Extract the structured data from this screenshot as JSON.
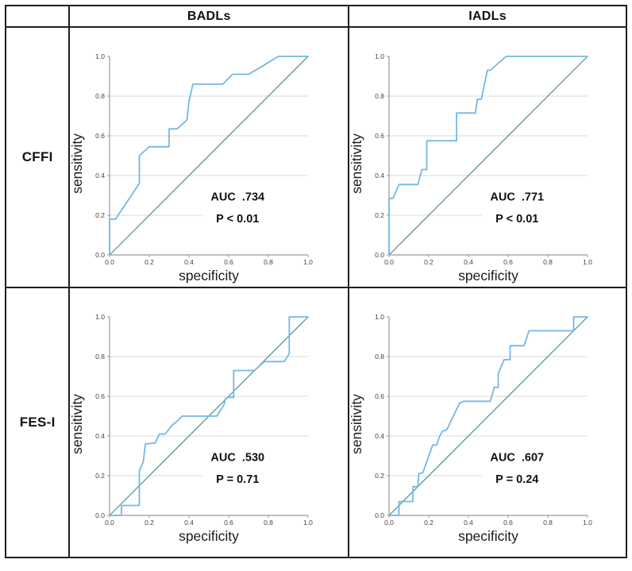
{
  "table": {
    "col_headers": [
      "BADLs",
      "IADLs"
    ],
    "row_headers": [
      "CFFI",
      "FES-I"
    ]
  },
  "axes": {
    "xlabel": "specificity",
    "ylabel": "sensitivity",
    "xlim": [
      0.0,
      1.0
    ],
    "ylim": [
      0.0,
      1.0
    ],
    "tick_values": [
      0.0,
      0.2,
      0.4,
      0.6,
      0.8,
      1.0
    ],
    "tick_labels": [
      "0.0",
      "0.2",
      "0.4",
      "0.6",
      "0.8",
      "1.0"
    ],
    "gridlines": "horizontal-only at 0.2 0.4 0.6 0.8",
    "legend": "none"
  },
  "colors": {
    "roc_curve": "#74b7e6",
    "reference_line": "#46918c",
    "gridline": "#d8d8d8",
    "axis_line": "#999999",
    "tick_text": "#444444",
    "table_border": "#1f1f1f",
    "text": "#111111"
  },
  "chart_data": [
    {
      "type": "line",
      "row": "CFFI",
      "column": "BADLs",
      "title": "ROC curve CFFI vs BADLs",
      "auc": 0.734,
      "auc_label": "AUC  .734",
      "p_label": "P < 0.01",
      "xlabel": "specificity",
      "ylabel": "sensitivity",
      "xlim": [
        0,
        1
      ],
      "ylim": [
        0,
        1
      ],
      "roc_points": [
        [
          0,
          0
        ],
        [
          0,
          0.18
        ],
        [
          0.03,
          0.18
        ],
        [
          0.15,
          0.36
        ],
        [
          0.15,
          0.5
        ],
        [
          0.2,
          0.545
        ],
        [
          0.3,
          0.545
        ],
        [
          0.3,
          0.635
        ],
        [
          0.34,
          0.635
        ],
        [
          0.39,
          0.68
        ],
        [
          0.4,
          0.775
        ],
        [
          0.42,
          0.86
        ],
        [
          0.57,
          0.86
        ],
        [
          0.62,
          0.91
        ],
        [
          0.7,
          0.91
        ],
        [
          0.76,
          0.945
        ],
        [
          0.85,
          1
        ],
        [
          1,
          1
        ]
      ],
      "diagonal": [
        [
          0,
          0
        ],
        [
          1,
          1
        ]
      ]
    },
    {
      "type": "line",
      "row": "CFFI",
      "column": "IADLs",
      "title": "ROC curve CFFI vs IADLs",
      "auc": 0.771,
      "auc_label": "AUC  .771",
      "p_label": "P < 0.01",
      "xlabel": "specificity",
      "ylabel": "sensitivity",
      "xlim": [
        0,
        1
      ],
      "ylim": [
        0,
        1
      ],
      "roc_points": [
        [
          0,
          0
        ],
        [
          0,
          0.285
        ],
        [
          0.02,
          0.285
        ],
        [
          0.05,
          0.355
        ],
        [
          0.145,
          0.355
        ],
        [
          0.165,
          0.43
        ],
        [
          0.19,
          0.43
        ],
        [
          0.19,
          0.575
        ],
        [
          0.34,
          0.575
        ],
        [
          0.34,
          0.715
        ],
        [
          0.435,
          0.715
        ],
        [
          0.445,
          0.785
        ],
        [
          0.465,
          0.785
        ],
        [
          0.49,
          0.905
        ],
        [
          0.495,
          0.93
        ],
        [
          0.51,
          0.93
        ],
        [
          0.59,
          1
        ],
        [
          1,
          1
        ]
      ],
      "diagonal": [
        [
          0,
          0
        ],
        [
          1,
          1
        ]
      ]
    },
    {
      "type": "line",
      "row": "FES-I",
      "column": "BADLs",
      "title": "ROC curve FES-I vs BADLs",
      "auc": 0.53,
      "auc_label": "AUC  .530",
      "p_label": "P = 0.71",
      "xlabel": "specificity",
      "ylabel": "sensitivity",
      "xlim": [
        0,
        1
      ],
      "ylim": [
        0,
        1
      ],
      "roc_points": [
        [
          0,
          0
        ],
        [
          0.06,
          0
        ],
        [
          0.06,
          0.05
        ],
        [
          0.15,
          0.05
        ],
        [
          0.15,
          0.225
        ],
        [
          0.17,
          0.27
        ],
        [
          0.18,
          0.36
        ],
        [
          0.23,
          0.365
        ],
        [
          0.25,
          0.41
        ],
        [
          0.28,
          0.41
        ],
        [
          0.315,
          0.455
        ],
        [
          0.335,
          0.47
        ],
        [
          0.365,
          0.5
        ],
        [
          0.54,
          0.5
        ],
        [
          0.575,
          0.555
        ],
        [
          0.585,
          0.59
        ],
        [
          0.6,
          0.595
        ],
        [
          0.625,
          0.595
        ],
        [
          0.625,
          0.73
        ],
        [
          0.73,
          0.73
        ],
        [
          0.78,
          0.775
        ],
        [
          0.88,
          0.775
        ],
        [
          0.905,
          0.815
        ],
        [
          0.905,
          1
        ],
        [
          1,
          1
        ]
      ],
      "diagonal": [
        [
          0,
          0
        ],
        [
          1,
          1
        ]
      ]
    },
    {
      "type": "line",
      "row": "FES-I",
      "column": "IADLs",
      "title": "ROC curve FES-I vs IADLs",
      "auc": 0.607,
      "auc_label": "AUC  .607",
      "p_label": "P = 0.24",
      "xlabel": "specificity",
      "ylabel": "sensitivity",
      "xlim": [
        0,
        1
      ],
      "ylim": [
        0,
        1
      ],
      "roc_points": [
        [
          0,
          0
        ],
        [
          0.05,
          0
        ],
        [
          0.05,
          0.07
        ],
        [
          0.12,
          0.07
        ],
        [
          0.12,
          0.145
        ],
        [
          0.145,
          0.145
        ],
        [
          0.15,
          0.21
        ],
        [
          0.17,
          0.215
        ],
        [
          0.22,
          0.355
        ],
        [
          0.24,
          0.355
        ],
        [
          0.255,
          0.4
        ],
        [
          0.27,
          0.425
        ],
        [
          0.29,
          0.43
        ],
        [
          0.355,
          0.565
        ],
        [
          0.375,
          0.575
        ],
        [
          0.51,
          0.575
        ],
        [
          0.53,
          0.645
        ],
        [
          0.55,
          0.645
        ],
        [
          0.55,
          0.715
        ],
        [
          0.58,
          0.785
        ],
        [
          0.61,
          0.785
        ],
        [
          0.61,
          0.855
        ],
        [
          0.68,
          0.855
        ],
        [
          0.705,
          0.93
        ],
        [
          0.93,
          0.93
        ],
        [
          0.93,
          1
        ],
        [
          1,
          1
        ]
      ],
      "diagonal": [
        [
          0,
          0
        ],
        [
          1,
          1
        ]
      ]
    }
  ]
}
